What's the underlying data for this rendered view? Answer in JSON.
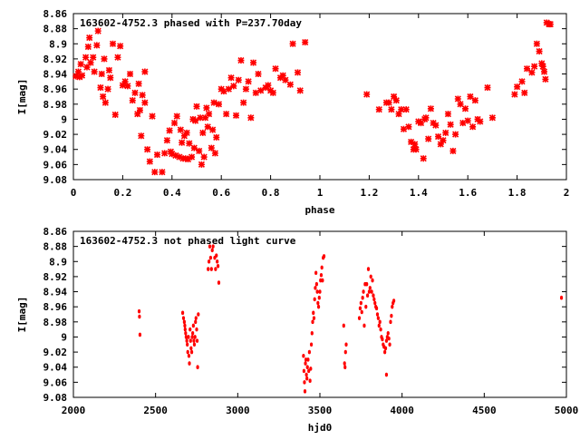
{
  "chart_data": [
    {
      "type": "scatter",
      "title": "163602-4752.3 phased with P=237.70day",
      "xlabel": "phase",
      "ylabel": "I[mag]",
      "xlim": [
        0,
        2
      ],
      "ylim": [
        9.08,
        8.86
      ],
      "y_inverted": true,
      "marker": "cross",
      "color": "#ff0000",
      "xticks": [
        0,
        0.2,
        0.4,
        0.6,
        0.8,
        1,
        1.2,
        1.4,
        1.6,
        1.8,
        2
      ],
      "xtick_labels": [
        "0",
        "0.2",
        "0.4",
        "0.6",
        "0.8",
        "1",
        "1.2",
        "1.4",
        "1.6",
        "1.8",
        "2"
      ],
      "yticks": [
        8.86,
        8.88,
        8.9,
        8.92,
        8.94,
        8.96,
        8.98,
        9.0,
        9.02,
        9.04,
        9.06,
        9.08
      ],
      "ytick_labels": [
        "8.86",
        "8.88",
        "8.9",
        "8.92",
        "8.94",
        "8.96",
        "8.98",
        "9",
        "9.02",
        "9.04",
        "9.06",
        "9.08"
      ],
      "points": [
        [
          0.01,
          8.943
        ],
        [
          0.02,
          8.937
        ],
        [
          0.025,
          8.944
        ],
        [
          0.03,
          8.927
        ],
        [
          0.035,
          8.942
        ],
        [
          0.05,
          8.918
        ],
        [
          0.055,
          8.931
        ],
        [
          0.06,
          8.904
        ],
        [
          0.065,
          8.892
        ],
        [
          0.07,
          8.925
        ],
        [
          0.08,
          8.918
        ],
        [
          0.085,
          8.937
        ],
        [
          0.095,
          8.902
        ],
        [
          0.1,
          8.883
        ],
        [
          0.11,
          8.958
        ],
        [
          0.115,
          8.94
        ],
        [
          0.12,
          8.97
        ],
        [
          0.125,
          8.92
        ],
        [
          0.13,
          8.978
        ],
        [
          0.14,
          8.96
        ],
        [
          0.145,
          8.935
        ],
        [
          0.15,
          8.945
        ],
        [
          0.16,
          8.9
        ],
        [
          0.17,
          8.994
        ],
        [
          0.18,
          8.918
        ],
        [
          0.19,
          8.903
        ],
        [
          0.2,
          8.955
        ],
        [
          0.21,
          8.95
        ],
        [
          0.22,
          8.956
        ],
        [
          0.23,
          8.94
        ],
        [
          0.24,
          8.975
        ],
        [
          0.25,
          8.965
        ],
        [
          0.26,
          8.993
        ],
        [
          0.265,
          8.953
        ],
        [
          0.27,
          8.988
        ],
        [
          0.275,
          9.022
        ],
        [
          0.28,
          8.968
        ],
        [
          0.29,
          8.978
        ],
        [
          0.29,
          8.937
        ],
        [
          0.3,
          9.04
        ],
        [
          0.31,
          9.056
        ],
        [
          0.32,
          8.996
        ],
        [
          0.33,
          9.07
        ],
        [
          0.34,
          9.047
        ],
        [
          0.36,
          9.07
        ],
        [
          0.37,
          9.045
        ],
        [
          0.38,
          9.028
        ],
        [
          0.39,
          9.015
        ],
        [
          0.395,
          9.043
        ],
        [
          0.4,
          9.046
        ],
        [
          0.41,
          9.005
        ],
        [
          0.415,
          9.048
        ],
        [
          0.42,
          8.996
        ],
        [
          0.43,
          9.05
        ],
        [
          0.435,
          9.014
        ],
        [
          0.44,
          9.031
        ],
        [
          0.445,
          9.052
        ],
        [
          0.45,
          9.022
        ],
        [
          0.455,
          9.052
        ],
        [
          0.46,
          9.018
        ],
        [
          0.465,
          9.053
        ],
        [
          0.47,
          9.032
        ],
        [
          0.48,
          9.05
        ],
        [
          0.485,
          9.0
        ],
        [
          0.49,
          9.038
        ],
        [
          0.495,
          9.002
        ],
        [
          0.5,
          8.983
        ],
        [
          0.51,
          9.042
        ],
        [
          0.515,
          8.998
        ],
        [
          0.52,
          9.06
        ],
        [
          0.525,
          9.018
        ],
        [
          0.53,
          9.05
        ],
        [
          0.535,
          8.998
        ],
        [
          0.54,
          8.985
        ],
        [
          0.545,
          9.01
        ],
        [
          0.55,
          8.993
        ],
        [
          0.56,
          9.038
        ],
        [
          0.565,
          9.014
        ],
        [
          0.57,
          8.978
        ],
        [
          0.575,
          9.045
        ],
        [
          0.58,
          9.024
        ],
        [
          0.59,
          8.98
        ],
        [
          0.6,
          8.96
        ],
        [
          0.61,
          8.963
        ],
        [
          0.62,
          8.993
        ],
        [
          0.63,
          8.96
        ],
        [
          0.64,
          8.945
        ],
        [
          0.65,
          8.956
        ],
        [
          0.66,
          8.995
        ],
        [
          0.67,
          8.948
        ],
        [
          0.68,
          8.922
        ],
        [
          0.69,
          8.978
        ],
        [
          0.7,
          8.96
        ],
        [
          0.71,
          8.95
        ],
        [
          0.72,
          8.998
        ],
        [
          0.73,
          8.925
        ],
        [
          0.74,
          8.965
        ],
        [
          0.75,
          8.94
        ],
        [
          0.76,
          8.962
        ],
        [
          0.78,
          8.958
        ],
        [
          0.79,
          8.955
        ],
        [
          0.8,
          8.962
        ],
        [
          0.81,
          8.965
        ],
        [
          0.82,
          8.933
        ],
        [
          0.84,
          8.945
        ],
        [
          0.85,
          8.942
        ],
        [
          0.86,
          8.948
        ],
        [
          0.88,
          8.954
        ],
        [
          0.89,
          8.9
        ],
        [
          0.91,
          8.938
        ],
        [
          0.92,
          8.962
        ],
        [
          0.94,
          8.898
        ],
        [
          1.19,
          8.967
        ],
        [
          1.24,
          8.987
        ],
        [
          1.27,
          8.978
        ],
        [
          1.28,
          8.978
        ],
        [
          1.29,
          8.987
        ],
        [
          1.3,
          8.97
        ],
        [
          1.31,
          8.975
        ],
        [
          1.32,
          8.993
        ],
        [
          1.33,
          8.987
        ],
        [
          1.34,
          9.013
        ],
        [
          1.35,
          8.987
        ],
        [
          1.36,
          9.01
        ],
        [
          1.37,
          9.03
        ],
        [
          1.38,
          9.04
        ],
        [
          1.385,
          9.033
        ],
        [
          1.39,
          9.04
        ],
        [
          1.4,
          9.003
        ],
        [
          1.41,
          9.005
        ],
        [
          1.42,
          9.052
        ],
        [
          1.425,
          9.0
        ],
        [
          1.43,
          8.998
        ],
        [
          1.44,
          9.026
        ],
        [
          1.45,
          8.986
        ],
        [
          1.46,
          9.005
        ],
        [
          1.47,
          9.008
        ],
        [
          1.48,
          9.023
        ],
        [
          1.49,
          9.033
        ],
        [
          1.5,
          9.028
        ],
        [
          1.51,
          9.018
        ],
        [
          1.52,
          8.993
        ],
        [
          1.53,
          9.007
        ],
        [
          1.54,
          9.042
        ],
        [
          1.55,
          9.02
        ],
        [
          1.56,
          8.973
        ],
        [
          1.57,
          8.98
        ],
        [
          1.58,
          9.005
        ],
        [
          1.59,
          8.986
        ],
        [
          1.6,
          9.002
        ],
        [
          1.61,
          8.97
        ],
        [
          1.62,
          9.01
        ],
        [
          1.63,
          8.975
        ],
        [
          1.64,
          9.0
        ],
        [
          1.65,
          9.003
        ],
        [
          1.68,
          8.958
        ],
        [
          1.7,
          8.998
        ],
        [
          1.79,
          8.967
        ],
        [
          1.8,
          8.957
        ],
        [
          1.82,
          8.95
        ],
        [
          1.83,
          8.965
        ],
        [
          1.84,
          8.933
        ],
        [
          1.86,
          8.938
        ],
        [
          1.87,
          8.93
        ],
        [
          1.88,
          8.9
        ],
        [
          1.89,
          8.91
        ],
        [
          1.9,
          8.926
        ],
        [
          1.905,
          8.93
        ],
        [
          1.91,
          8.937
        ],
        [
          1.915,
          8.947
        ],
        [
          1.92,
          8.872
        ],
        [
          1.93,
          8.874
        ],
        [
          1.935,
          8.874
        ]
      ]
    },
    {
      "type": "scatter",
      "title": "163602-4752.3 not phased light curve",
      "xlabel": "hjd0",
      "ylabel": "I[mag]",
      "xlim": [
        2000,
        5000
      ],
      "ylim": [
        9.08,
        8.86
      ],
      "y_inverted": true,
      "marker": "dot",
      "color": "#ff0000",
      "xticks": [
        2000,
        2500,
        3000,
        3500,
        4000,
        4500,
        5000
      ],
      "xtick_labels": [
        "2000",
        "2500",
        "3000",
        "3500",
        "4000",
        "4500",
        "5000"
      ],
      "yticks": [
        8.86,
        8.88,
        8.9,
        8.92,
        8.94,
        8.96,
        8.98,
        9.0,
        9.02,
        9.04,
        9.06,
        9.08
      ],
      "ytick_labels": [
        "8.86",
        "8.88",
        "8.9",
        "8.92",
        "8.94",
        "8.96",
        "8.98",
        "9",
        "9.02",
        "9.04",
        "9.06",
        "9.08"
      ],
      "points": [
        [
          2400,
          8.966
        ],
        [
          2402,
          8.973
        ],
        [
          2405,
          8.997
        ],
        [
          2665,
          8.968
        ],
        [
          2670,
          8.975
        ],
        [
          2675,
          8.98
        ],
        [
          2678,
          8.985
        ],
        [
          2680,
          8.99
        ],
        [
          2683,
          8.995
        ],
        [
          2686,
          9.0
        ],
        [
          2690,
          9.005
        ],
        [
          2693,
          9.01
        ],
        [
          2696,
          9.02
        ],
        [
          2700,
          9.0
        ],
        [
          2703,
          9.025
        ],
        [
          2706,
          9.035
        ],
        [
          2710,
          8.99
        ],
        [
          2713,
          9.005
        ],
        [
          2716,
          9.015
        ],
        [
          2720,
          9.02
        ],
        [
          2723,
          9.0
        ],
        [
          2726,
          8.995
        ],
        [
          2730,
          8.985
        ],
        [
          2733,
          9.005
        ],
        [
          2736,
          9.01
        ],
        [
          2740,
          9.0
        ],
        [
          2743,
          8.98
        ],
        [
          2746,
          8.975
        ],
        [
          2750,
          8.99
        ],
        [
          2753,
          9.005
        ],
        [
          2756,
          9.04
        ],
        [
          2760,
          8.97
        ],
        [
          2820,
          8.91
        ],
        [
          2825,
          8.9
        ],
        [
          2830,
          8.88
        ],
        [
          2835,
          8.895
        ],
        [
          2840,
          8.91
        ],
        [
          2845,
          8.885
        ],
        [
          2850,
          8.88
        ],
        [
          2860,
          8.895
        ],
        [
          2865,
          8.91
        ],
        [
          2870,
          8.892
        ],
        [
          2875,
          8.9
        ],
        [
          2880,
          8.906
        ],
        [
          2885,
          8.928
        ],
        [
          3400,
          9.025
        ],
        [
          3403,
          9.045
        ],
        [
          3406,
          9.06
        ],
        [
          3409,
          9.072
        ],
        [
          3412,
          9.035
        ],
        [
          3415,
          9.03
        ],
        [
          3418,
          9.05
        ],
        [
          3421,
          9.055
        ],
        [
          3424,
          9.04
        ],
        [
          3428,
          9.03
        ],
        [
          3432,
          9.045
        ],
        [
          3436,
          9.02
        ],
        [
          3440,
          9.058
        ],
        [
          3444,
          9.042
        ],
        [
          3448,
          9.01
        ],
        [
          3452,
          8.995
        ],
        [
          3456,
          8.98
        ],
        [
          3460,
          8.968
        ],
        [
          3464,
          8.975
        ],
        [
          3468,
          8.95
        ],
        [
          3472,
          8.935
        ],
        [
          3476,
          8.915
        ],
        [
          3480,
          8.93
        ],
        [
          3484,
          8.94
        ],
        [
          3488,
          8.955
        ],
        [
          3492,
          8.96
        ],
        [
          3496,
          8.948
        ],
        [
          3500,
          8.94
        ],
        [
          3504,
          8.925
        ],
        [
          3508,
          8.918
        ],
        [
          3512,
          8.908
        ],
        [
          3516,
          8.925
        ],
        [
          3520,
          8.895
        ],
        [
          3525,
          8.893
        ],
        [
          3645,
          8.985
        ],
        [
          3650,
          9.035
        ],
        [
          3653,
          9.04
        ],
        [
          3656,
          9.02
        ],
        [
          3660,
          9.01
        ],
        [
          3740,
          8.975
        ],
        [
          3745,
          8.962
        ],
        [
          3750,
          8.955
        ],
        [
          3755,
          8.967
        ],
        [
          3760,
          8.948
        ],
        [
          3765,
          8.94
        ],
        [
          3770,
          8.985
        ],
        [
          3775,
          8.93
        ],
        [
          3780,
          8.96
        ],
        [
          3785,
          8.93
        ],
        [
          3790,
          8.945
        ],
        [
          3795,
          8.91
        ],
        [
          3800,
          8.94
        ],
        [
          3805,
          8.935
        ],
        [
          3810,
          8.92
        ],
        [
          3815,
          8.94
        ],
        [
          3820,
          8.925
        ],
        [
          3825,
          8.945
        ],
        [
          3830,
          8.95
        ],
        [
          3835,
          8.955
        ],
        [
          3840,
          8.96
        ],
        [
          3845,
          8.962
        ],
        [
          3850,
          8.97
        ],
        [
          3855,
          8.975
        ],
        [
          3860,
          8.985
        ],
        [
          3865,
          8.98
        ],
        [
          3870,
          8.99
        ],
        [
          3875,
          9.0
        ],
        [
          3880,
          9.003
        ],
        [
          3885,
          9.01
        ],
        [
          3890,
          9.013
        ],
        [
          3895,
          9.02
        ],
        [
          3900,
          9.015
        ],
        [
          3905,
          9.005
        ],
        [
          3910,
          9.0
        ],
        [
          3915,
          8.995
        ],
        [
          3920,
          9.002
        ],
        [
          3925,
          9.01
        ],
        [
          3930,
          8.98
        ],
        [
          3935,
          8.972
        ],
        [
          3940,
          8.96
        ],
        [
          3945,
          8.955
        ],
        [
          3950,
          8.952
        ],
        [
          3905,
          9.05
        ],
        [
          4970,
          8.948
        ]
      ]
    }
  ]
}
